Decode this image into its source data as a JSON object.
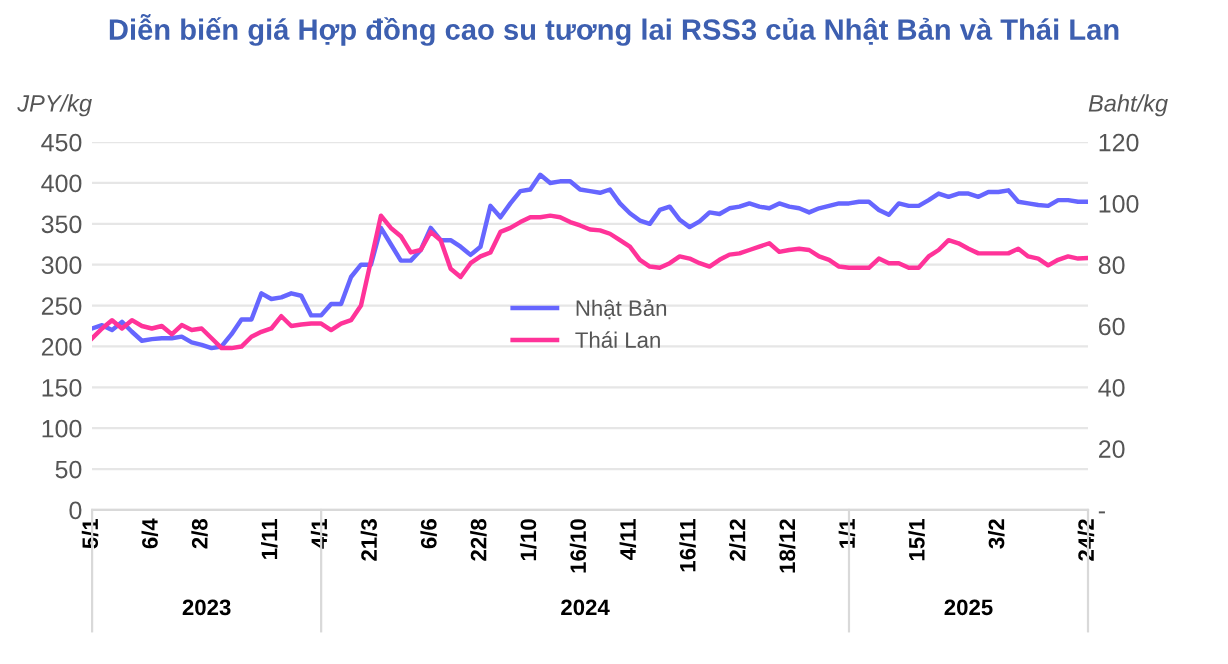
{
  "chart_data": {
    "type": "line",
    "title": "Diễn biến giá Hợp đồng cao su tương lai RSS3 của Nhật Bản và Thái Lan",
    "ylabel": "JPY/kg",
    "y2label": "Baht/kg",
    "categories": [
      "5/1",
      null,
      null,
      null,
      null,
      null,
      "6/4",
      null,
      null,
      null,
      null,
      "2/8",
      null,
      null,
      null,
      null,
      null,
      null,
      "1/11",
      null,
      null,
      null,
      null,
      "4/1",
      null,
      null,
      null,
      null,
      "21/3",
      null,
      null,
      null,
      null,
      null,
      "6/6",
      null,
      null,
      null,
      null,
      "22/8",
      null,
      null,
      null,
      null,
      "1/10",
      null,
      null,
      null,
      null,
      "16/10",
      null,
      null,
      null,
      null,
      "4/11",
      null,
      null,
      null,
      null,
      null,
      "16/11",
      null,
      null,
      null,
      null,
      "2/12",
      null,
      null,
      null,
      null,
      "18/12",
      null,
      null,
      null,
      null,
      null,
      "1/1",
      null,
      null,
      null,
      null,
      null,
      null,
      "15/1",
      null,
      null,
      null,
      null,
      null,
      null,
      null,
      "3/2",
      null,
      null,
      null,
      null,
      null,
      null,
      null,
      null,
      "24/2"
    ],
    "series": [
      {
        "name": "Nhật Bản",
        "color": "#6666ff",
        "values": [
          222,
          226,
          220,
          230,
          218,
          207,
          209,
          210,
          210,
          212,
          205,
          202,
          198,
          200,
          215,
          233,
          233,
          265,
          258,
          260,
          265,
          262,
          238,
          238,
          252,
          252,
          285,
          300,
          300,
          345,
          325,
          305,
          305,
          318,
          345,
          330,
          330,
          322,
          312,
          322,
          372,
          358,
          375,
          390,
          392,
          410,
          400,
          402,
          402,
          392,
          390,
          388,
          392,
          375,
          363,
          354,
          350,
          367,
          371,
          355,
          346,
          353,
          364,
          362,
          369,
          371,
          375,
          371,
          369,
          375,
          371,
          369,
          364,
          369,
          372,
          375,
          375,
          377,
          377,
          367,
          361,
          375,
          372,
          372,
          379,
          387,
          383,
          387,
          387,
          383,
          389,
          389,
          391,
          377,
          375,
          373,
          372,
          379,
          379,
          377,
          377
        ]
      },
      {
        "name": "Thái Lan",
        "color": "#ff3399",
        "axis": "y2",
        "values": [
          56.0,
          59.2,
          61.9,
          59.2,
          61.9,
          60.0,
          59.2,
          60.0,
          57.3,
          60.3,
          58.7,
          59.2,
          56.0,
          52.8,
          52.8,
          53.3,
          56.5,
          58.1,
          59.2,
          63.2,
          60.0,
          60.5,
          60.8,
          60.8,
          58.7,
          60.8,
          61.9,
          66.7,
          81.3,
          96.0,
          92.0,
          89.3,
          84.0,
          84.8,
          90.7,
          88.0,
          78.7,
          76.0,
          80.5,
          82.7,
          84.0,
          90.7,
          92.0,
          93.9,
          95.5,
          95.5,
          96.0,
          95.5,
          93.9,
          92.8,
          91.5,
          91.2,
          90.1,
          88.0,
          85.9,
          81.6,
          79.4,
          79.0,
          80.5,
          82.7,
          82.0,
          80.5,
          79.4,
          81.6,
          83.3,
          83.7,
          84.8,
          85.9,
          87.0,
          84.2,
          84.8,
          85.2,
          84.8,
          82.7,
          81.6,
          79.4,
          79.0,
          79.0,
          79.0,
          82.0,
          80.5,
          80.5,
          79.0,
          79.0,
          82.7,
          84.8,
          88.0,
          87.0,
          85.2,
          83.7,
          83.7,
          83.7,
          83.7,
          85.2,
          82.7,
          82.0,
          79.8,
          81.6,
          82.7,
          82.0,
          82.2
        ]
      }
    ],
    "ylim": [
      0,
      450
    ],
    "yticks": [
      0,
      50,
      100,
      150,
      200,
      250,
      300,
      350,
      400,
      450
    ],
    "y2lim": [
      0,
      120
    ],
    "y2ticks": [
      {
        "value": 0,
        "label": "-"
      },
      20,
      40,
      60,
      80,
      100,
      120
    ],
    "grid": "y",
    "legend": "center",
    "marker": "none",
    "line_style": "solid",
    "annotations": [
      "2023",
      "2024",
      "2025"
    ]
  }
}
